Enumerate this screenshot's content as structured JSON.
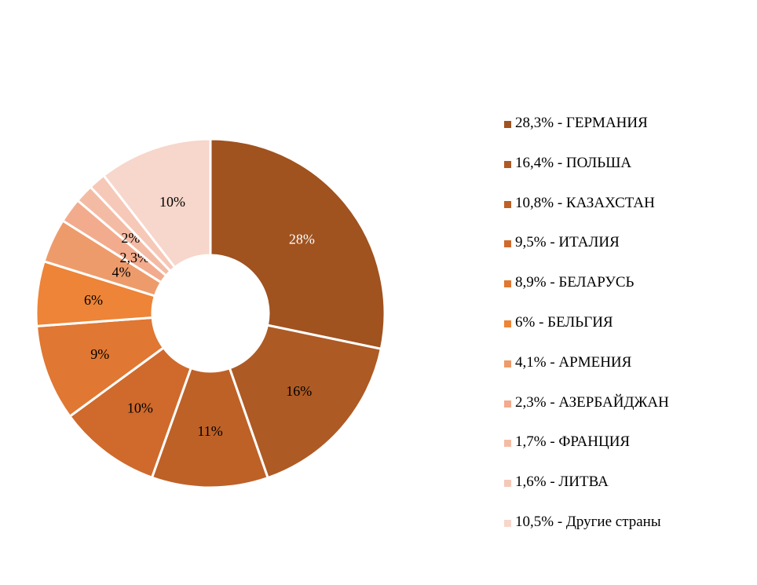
{
  "chart_data": {
    "type": "pie",
    "variant": "donut",
    "values": [
      28.3,
      16.4,
      10.8,
      9.5,
      8.9,
      6,
      4.1,
      2.3,
      1.7,
      1.6,
      10.5
    ],
    "data_labels": [
      "28%",
      "16%",
      "11%",
      "10%",
      "9%",
      "6%",
      "4%",
      "2,3%",
      "2%",
      "",
      "10%"
    ],
    "label_colors": [
      "#ffffff",
      "#000000",
      "#000000",
      "#000000",
      "#000000",
      "#000000",
      "#000000",
      "#000000",
      "#000000",
      "#000000",
      "#000000"
    ],
    "colors": [
      "#A0521F",
      "#AE5A24",
      "#BE6127",
      "#CF6A2C",
      "#E07732",
      "#ED8437",
      "#EE9B6B",
      "#F2AB8D",
      "#F4BBA4",
      "#F6C8B8",
      "#F7D6CB"
    ],
    "legend": [
      "28,3% - ГЕРМАНИЯ",
      "16,4% - ПОЛЬША",
      "10,8% - КАЗАХСТАН",
      "9,5% - ИТАЛИЯ",
      "8,9% - БЕЛАРУСЬ",
      "6% - БЕЛЬГИЯ",
      "4,1% - АРМЕНИЯ",
      "2,3% - АЗЕРБАЙДЖАН",
      "1,7% - ФРАНЦИЯ",
      "1,6% - ЛИТВА",
      "10,5% - Другие страны"
    ],
    "legend_position": "right"
  }
}
